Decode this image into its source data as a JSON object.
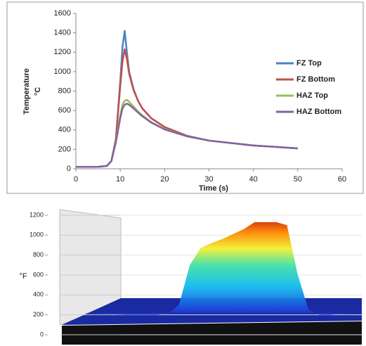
{
  "chart_data": [
    {
      "type": "line",
      "xlabel": "Time (s)",
      "ylabel": "Temperature",
      "yunit": "°C",
      "x": [
        0,
        5,
        7,
        8,
        9,
        10,
        10.5,
        11,
        11.5,
        12,
        13,
        14,
        15,
        17,
        20,
        25,
        30,
        40,
        50
      ],
      "series": [
        {
          "name": "FZ Top",
          "color": "#4f81bd",
          "values": [
            20,
            20,
            30,
            80,
            300,
            900,
            1250,
            1420,
            1200,
            1000,
            820,
            700,
            620,
            520,
            430,
            340,
            290,
            240,
            210
          ]
        },
        {
          "name": "FZ Bottom",
          "color": "#c0504d",
          "values": [
            20,
            20,
            30,
            80,
            300,
            850,
            1100,
            1230,
            1130,
            980,
            810,
            700,
            620,
            520,
            430,
            340,
            290,
            240,
            210
          ]
        },
        {
          "name": "HAZ Top",
          "color": "#9bbb59",
          "values": [
            20,
            20,
            30,
            80,
            280,
            550,
            660,
            700,
            710,
            690,
            640,
            590,
            550,
            480,
            410,
            335,
            290,
            240,
            210
          ]
        },
        {
          "name": "HAZ Bottom",
          "color": "#8064a2",
          "values": [
            20,
            20,
            30,
            80,
            270,
            520,
            620,
            660,
            670,
            660,
            620,
            580,
            540,
            475,
            405,
            335,
            290,
            240,
            210
          ]
        }
      ],
      "xlim": [
        0,
        60
      ],
      "xticks": [
        0,
        10,
        20,
        30,
        40,
        50,
        60
      ],
      "ylim": [
        0,
        1600
      ],
      "yticks": [
        0,
        200,
        400,
        600,
        800,
        1000,
        1200,
        1400,
        1600
      ],
      "legend": "right",
      "grid": false
    },
    {
      "type": "surface",
      "ylabel": "°F",
      "values": [
        200,
        200,
        200,
        200,
        210,
        300,
        700,
        870,
        920,
        960,
        1010,
        1060,
        1130,
        1130,
        1130,
        1100,
        600,
        250,
        200,
        200
      ],
      "ylim": [
        0,
        1200
      ],
      "yticks": [
        0,
        200,
        400,
        600,
        800,
        1000,
        1200
      ],
      "grid": true
    }
  ]
}
